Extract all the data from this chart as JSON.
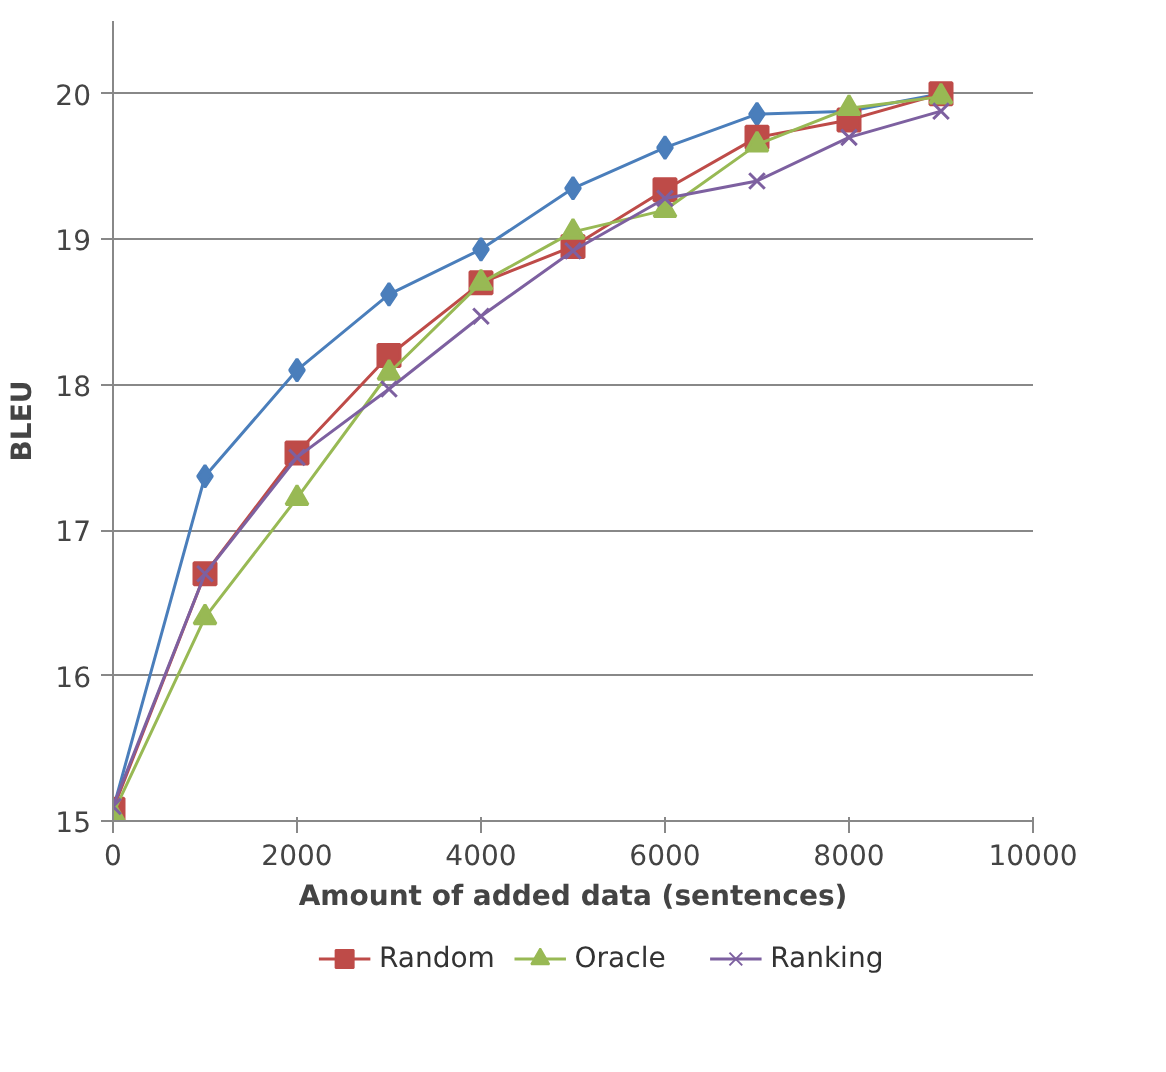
{
  "chart_data": {
    "type": "line",
    "xlabel": "Amount of added data (sentences)",
    "ylabel": "BLEU",
    "x": [
      0,
      1000,
      2000,
      3000,
      4000,
      5000,
      6000,
      7000,
      8000,
      9000
    ],
    "xlim": [
      0,
      10000
    ],
    "xticks": [
      0,
      2000,
      4000,
      6000,
      8000,
      10000
    ],
    "ylim": [
      15,
      20.5
    ],
    "yticks": [
      15,
      16,
      17,
      18,
      19,
      20
    ],
    "grid": "y",
    "legend": "bottom",
    "series": [
      {
        "color": "#4a7ebb",
        "marker": "diamond",
        "values": [
          15.08,
          17.37,
          18.1,
          18.62,
          18.93,
          19.35,
          19.63,
          19.86,
          19.88,
          20.0
        ]
      },
      {
        "name": "Random",
        "color": "#be4b48",
        "marker": "square",
        "values": [
          15.08,
          16.7,
          17.53,
          18.2,
          18.7,
          18.95,
          19.34,
          19.7,
          19.82,
          20.0
        ]
      },
      {
        "name": "Oracle",
        "color": "#98b954",
        "marker": "triangle",
        "values": [
          15.05,
          16.4,
          17.22,
          18.08,
          18.7,
          19.05,
          19.2,
          19.65,
          19.9,
          19.98
        ]
      },
      {
        "name": "Ranking",
        "color": "#7d60a0",
        "marker": "cross",
        "values": [
          15.1,
          16.7,
          17.5,
          17.97,
          18.47,
          18.92,
          19.28,
          19.4,
          19.7,
          19.88
        ]
      }
    ]
  }
}
